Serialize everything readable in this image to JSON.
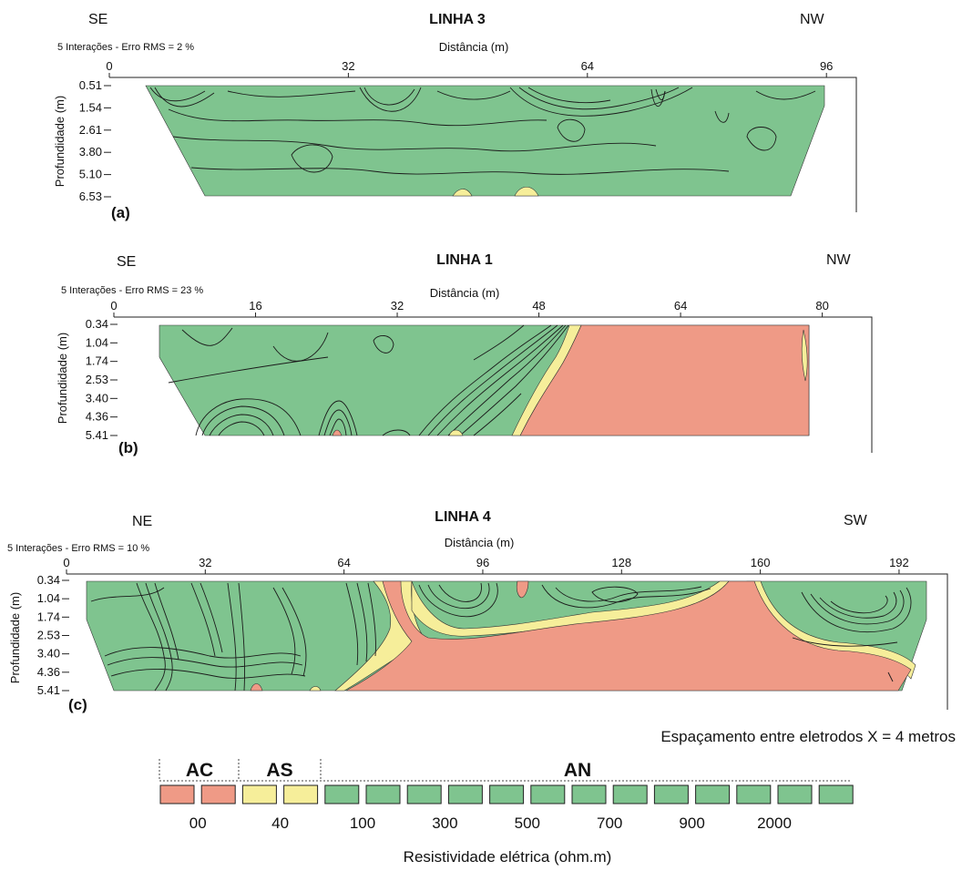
{
  "chart_data": [
    {
      "type": "heatmap",
      "panel_label": "(a)",
      "title": "LINHA 3",
      "left_direction": "SE",
      "right_direction": "NW",
      "iterations_note": "5 Interações - Erro RMS = 2 %",
      "xlabel": "Distância (m)",
      "ylabel": "Profundidade (m)",
      "x_ticks": [
        "0",
        "32",
        "64",
        "96"
      ],
      "x_tick_values": [
        0,
        32,
        64,
        96
      ],
      "xlim": [
        0,
        100
      ],
      "depth_ticks": [
        "0.51",
        "1.54",
        "2.61",
        "3.80",
        "5.10",
        "6.53"
      ],
      "section_extent_m": {
        "top": [
          5,
          95
        ],
        "bottom": [
          11,
          87
        ]
      },
      "zones": [
        {
          "class": "AN",
          "description": "predominantly green, resistivity 100-2000 ohm.m"
        },
        {
          "class": "AS",
          "description": "small yellow pockets at base near 48 m and 57 m"
        }
      ]
    },
    {
      "type": "heatmap",
      "panel_label": "(b)",
      "title": "LINHA 1",
      "left_direction": "SE",
      "right_direction": "NW",
      "iterations_note": "5 Interações - Erro RMS = 23 %",
      "xlabel": "Distância (m)",
      "ylabel": "Profundidade (m)",
      "x_ticks": [
        "0",
        "16",
        "32",
        "48",
        "64",
        "80"
      ],
      "x_tick_values": [
        0,
        16,
        32,
        48,
        64,
        80
      ],
      "xlim": [
        0,
        86
      ],
      "depth_ticks": [
        "0.34",
        "1.04",
        "1.74",
        "2.53",
        "3.40",
        "4.36",
        "5.41"
      ],
      "section_extent_m": {
        "top": [
          5,
          79
        ],
        "bottom": [
          11,
          79
        ]
      },
      "zones": [
        {
          "class": "AN",
          "description": "green from 5 m to about 52 m"
        },
        {
          "class": "AC",
          "description": "salmon block from about 47-53 m to 79 m"
        }
      ]
    },
    {
      "type": "heatmap",
      "panel_label": "(c)",
      "title": "LINHA 4",
      "left_direction": "NE",
      "right_direction": "SW",
      "iterations_note": "5 Interações - Erro RMS = 10 %",
      "xlabel": "Distância (m)",
      "ylabel": "Profundidade (m)",
      "x_ticks": [
        "0",
        "32",
        "64",
        "96",
        "128",
        "160",
        "192"
      ],
      "x_tick_values": [
        0,
        32,
        64,
        96,
        128,
        160,
        192
      ],
      "xlim": [
        0,
        203
      ],
      "depth_ticks": [
        "0.34",
        "1.04",
        "1.74",
        "2.53",
        "3.40",
        "4.36",
        "5.41"
      ],
      "section_extent_m": {
        "top": [
          5,
          199
        ],
        "bottom": [
          11,
          193
        ]
      },
      "zones": [
        {
          "class": "AN",
          "description": "green from 5 m to about 71 m and near surface 78-155 m and 157-199 m"
        },
        {
          "class": "AC",
          "description": "salmon body from about 64-72 m extending to 192 m at depth"
        },
        {
          "class": "AS",
          "description": "yellow transition bands around the salmon body"
        }
      ]
    }
  ],
  "caption_spacing": "Espaçamento entre eletrodos X = 4 metros",
  "legend": {
    "groups": [
      {
        "label": "AC",
        "color": "#ef9a86",
        "swatches": 2
      },
      {
        "label": "AS",
        "color": "#f6ee9a",
        "swatches": 2
      },
      {
        "label": "AN",
        "color": "#7fc48f",
        "swatches": 13
      }
    ],
    "values": [
      "00",
      "40",
      "100",
      "300",
      "500",
      "700",
      "900",
      "2000"
    ],
    "title": "Resistividade elétrica (ohm.m)"
  },
  "colors": {
    "AC": "#ef9a86",
    "AS": "#f6ee9a",
    "AN": "#7fc48f",
    "contour": "#1b1b1b"
  }
}
